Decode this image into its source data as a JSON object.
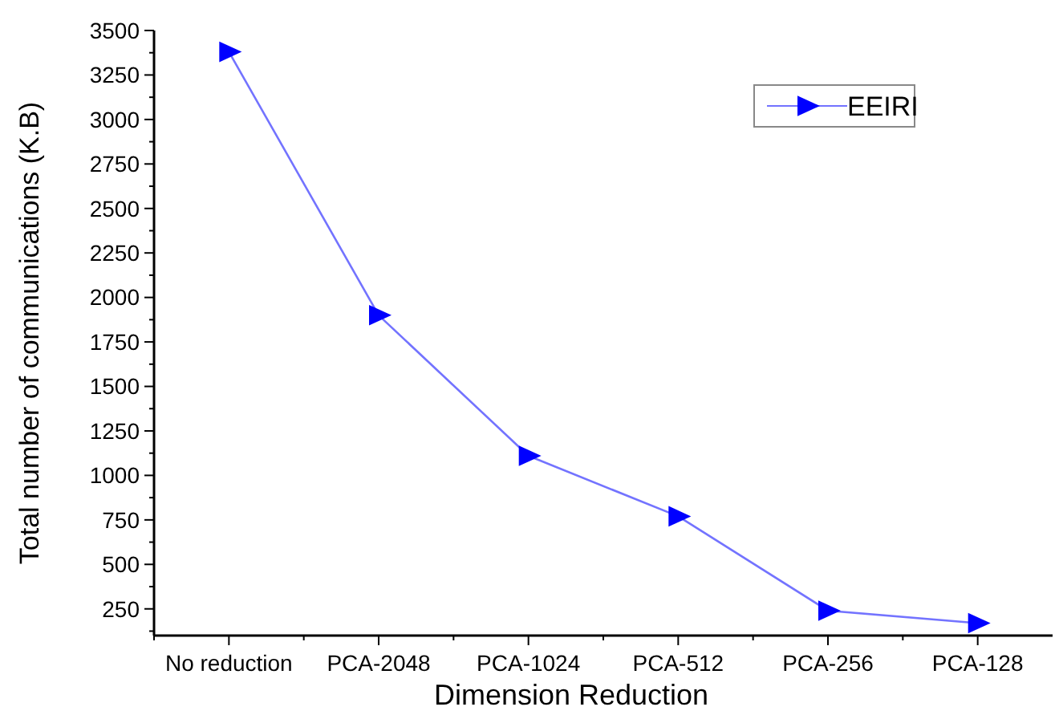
{
  "chart_data": {
    "type": "line",
    "xlabel": "Dimension Reduction",
    "ylabel": "Total number of communications (K.B)",
    "categories": [
      "No reduction",
      "PCA-2048",
      "PCA-1024",
      "PCA-512",
      "PCA-256",
      "PCA-128"
    ],
    "series": [
      {
        "name": "EEIRI",
        "color": "#0000ff",
        "values": [
          3380,
          1900,
          1110,
          770,
          240,
          170
        ]
      }
    ],
    "ylim": [
      100,
      3500
    ],
    "yticks": [
      250,
      500,
      750,
      1000,
      1250,
      1500,
      1750,
      2000,
      2250,
      2500,
      2750,
      3000,
      3250,
      3500
    ],
    "grid": false,
    "legend": "top right",
    "marker": "triangle",
    "line_style": "solid"
  }
}
